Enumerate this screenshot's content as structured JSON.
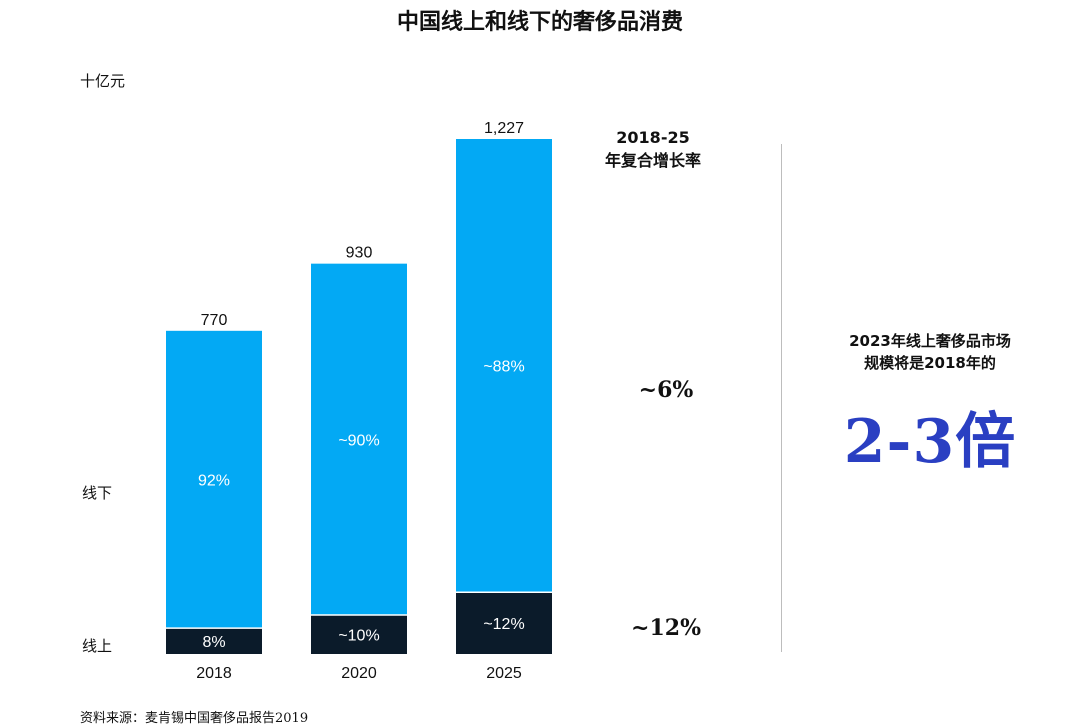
{
  "title": "中国线上和线下的奢侈品消费",
  "unit_label": "十亿元",
  "legend": {
    "offline": "线下",
    "online": "线上"
  },
  "colors": {
    "offline": "#03a9f4",
    "online": "#0b1b2a",
    "callout": "#2a3fc2"
  },
  "chart_data": {
    "type": "bar",
    "stacked": true,
    "categories": [
      "2018",
      "2020",
      "2025"
    ],
    "totals": [
      770,
      930,
      1227
    ],
    "total_labels": [
      "770",
      "930",
      "1,227"
    ],
    "series": [
      {
        "name": "线上",
        "share": [
          0.08,
          0.1,
          0.12
        ],
        "labels": [
          "8%",
          "~10%",
          "~12%"
        ]
      },
      {
        "name": "线下",
        "share": [
          0.92,
          0.9,
          0.88
        ],
        "labels": [
          "92%",
          "~90%",
          "~88%"
        ]
      }
    ],
    "ylim": [
      0,
      1227
    ],
    "ylabel": "十亿元",
    "grid": false
  },
  "cagr": {
    "header_line1": "2018-25",
    "header_line2": "年复合增长率",
    "offline_value": "~6%",
    "online_value": "~12%"
  },
  "callout": {
    "line1": "2023年线上奢侈品市场",
    "line2": "规模将是2018年的",
    "big": "2-3倍"
  },
  "source": "资料来源：麦肯锡中国奢侈品报告2019"
}
